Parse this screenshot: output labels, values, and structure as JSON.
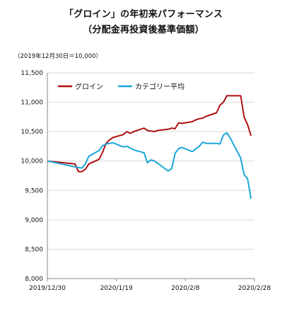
{
  "chart_data": {
    "type": "line",
    "title": "「グロイン」の年初来パフォーマンス",
    "subtitle": "（分配金再投資後基準価額）",
    "note": "（2019年12月30日＝10,000）",
    "ylim": [
      8000,
      11500
    ],
    "y_ticks": [
      "8,000",
      "8,500",
      "9,000",
      "9,500",
      "10,000",
      "10,500",
      "11,000",
      "11,500"
    ],
    "x_ticks": [
      "2019/12/30",
      "2020/1/19",
      "2020/2/8",
      "2020/2/28"
    ],
    "x_range_days": [
      0,
      60
    ],
    "grid": true,
    "legend": "top-left",
    "series": [
      {
        "name": "グロイン",
        "color": "#b01010",
        "x": [
          0,
          8,
          9,
          10,
          11,
          12,
          15,
          16,
          17,
          18,
          19,
          22,
          23,
          24,
          25,
          28,
          29,
          30,
          31,
          32,
          35,
          36,
          37,
          38,
          39,
          42,
          43,
          44,
          45,
          46,
          49,
          50,
          51,
          52,
          53,
          56,
          57,
          58,
          59
        ],
        "y": [
          10000,
          9950,
          9820,
          9820,
          9860,
          9950,
          10030,
          10150,
          10300,
          10360,
          10400,
          10450,
          10500,
          10470,
          10500,
          10560,
          10520,
          10510,
          10500,
          10520,
          10540,
          10560,
          10550,
          10650,
          10640,
          10670,
          10700,
          10720,
          10730,
          10760,
          10820,
          10950,
          11000,
          11110,
          11110,
          11110,
          10750,
          10620,
          10430
        ]
      },
      {
        "name": "カテゴリー平均",
        "color": "#1aa6d9",
        "x": [
          0,
          8,
          9,
          10,
          11,
          12,
          15,
          16,
          17,
          18,
          19,
          22,
          23,
          24,
          25,
          28,
          29,
          30,
          31,
          32,
          35,
          36,
          37,
          38,
          39,
          42,
          43,
          44,
          45,
          46,
          49,
          50,
          51,
          52,
          53,
          56,
          57,
          58,
          59
        ],
        "y": [
          10000,
          9900,
          9890,
          9880,
          9950,
          10080,
          10180,
          10260,
          10290,
          10300,
          10310,
          10240,
          10250,
          10220,
          10190,
          10140,
          9970,
          10020,
          10000,
          9960,
          9830,
          9870,
          10130,
          10210,
          10230,
          10160,
          10210,
          10250,
          10320,
          10300,
          10300,
          10290,
          10440,
          10480,
          10390,
          10050,
          9770,
          9700,
          9360
        ]
      }
    ]
  }
}
